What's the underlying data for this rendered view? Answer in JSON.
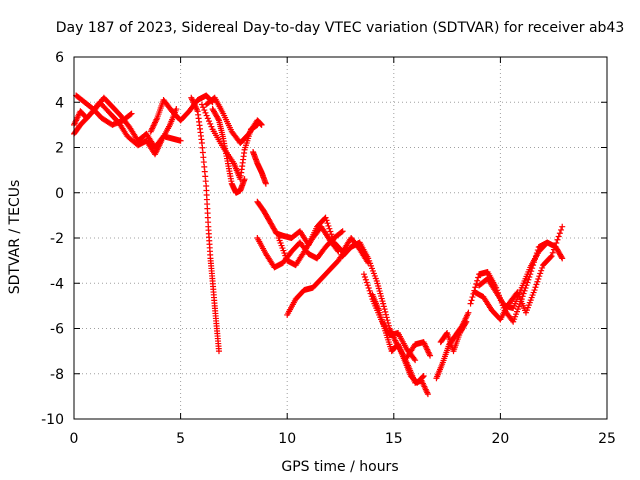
{
  "chart_data": {
    "type": "scatter",
    "title": "Day 187 of 2023, Sidereal Day-to-day VTEC variation (SDTVAR) for receiver ab43",
    "xlabel": "GPS time / hours",
    "ylabel": "SDTVAR / TECUs",
    "xlim": [
      0,
      25
    ],
    "ylim": [
      -10,
      6
    ],
    "xticks": [
      0,
      5,
      10,
      15,
      20,
      25
    ],
    "yticks": [
      -10,
      -8,
      -6,
      -4,
      -2,
      0,
      2,
      4,
      6
    ],
    "xtick_labels": [
      "0",
      "5",
      "10",
      "15",
      "20",
      "25"
    ],
    "ytick_labels": [
      "-10",
      "-8",
      "-6",
      "-4",
      "-2",
      "0",
      "2",
      "4",
      "6"
    ],
    "grid": true,
    "marker": "+",
    "color": "#ff0000",
    "series": [
      {
        "name": "arc-1",
        "x": [
          0.0,
          0.3,
          0.6,
          1.0,
          1.4,
          1.8,
          2.2,
          2.6,
          3.0,
          3.4,
          3.8,
          4.2,
          4.6,
          5.0
        ],
        "y": [
          3.0,
          3.6,
          3.3,
          3.7,
          4.2,
          3.8,
          3.4,
          2.9,
          2.3,
          2.6,
          2.0,
          2.5,
          2.4,
          2.3
        ]
      },
      {
        "name": "arc-2",
        "x": [
          0.0,
          0.3,
          0.7,
          1.2,
          1.7,
          2.1,
          2.5,
          3.0,
          3.4,
          3.8,
          4.1,
          4.5,
          4.8
        ],
        "y": [
          2.6,
          3.0,
          3.4,
          4.0,
          3.5,
          3.1,
          2.5,
          2.1,
          2.3,
          1.7,
          2.3,
          3.0,
          3.7
        ]
      },
      {
        "name": "arc-3",
        "x": [
          0.1,
          0.5,
          0.9,
          1.3,
          1.8,
          2.3,
          2.7
        ],
        "y": [
          4.3,
          4.0,
          3.7,
          3.3,
          3.0,
          3.2,
          3.5
        ]
      },
      {
        "name": "arc-4",
        "x": [
          3.6,
          3.9,
          4.2,
          4.6,
          5.0,
          5.4,
          5.8,
          6.2,
          6.5
        ],
        "y": [
          2.7,
          3.3,
          4.1,
          3.6,
          3.2,
          3.6,
          4.1,
          4.3,
          4.0
        ]
      },
      {
        "name": "arc-5",
        "x": [
          5.5,
          5.8,
          6.0,
          6.2,
          6.3,
          6.4,
          6.5,
          6.6,
          6.7,
          6.8
        ],
        "y": [
          4.2,
          3.6,
          2.2,
          0.3,
          -1.5,
          -2.9,
          -3.9,
          -5.0,
          -6.0,
          -7.0
        ]
      },
      {
        "name": "arc-6",
        "x": [
          6.5,
          6.8,
          7.0,
          7.2,
          7.4,
          7.6,
          7.8,
          8.0
        ],
        "y": [
          3.7,
          3.2,
          2.4,
          1.4,
          0.4,
          0.0,
          0.1,
          0.6
        ]
      },
      {
        "name": "arc-7",
        "x": [
          6.2,
          6.6,
          7.0,
          7.4,
          7.8,
          8.2,
          8.6,
          8.8
        ],
        "y": [
          3.9,
          4.2,
          3.5,
          2.7,
          2.2,
          2.6,
          3.2,
          3.0
        ]
      },
      {
        "name": "arc-8",
        "x": [
          6.0,
          6.5,
          7.0,
          7.5,
          7.8,
          8.0,
          8.3,
          8.6
        ],
        "y": [
          3.9,
          2.8,
          2.0,
          1.3,
          0.6,
          1.9,
          2.8,
          3.0
        ]
      },
      {
        "name": "arc-9",
        "x": [
          8.4,
          8.6,
          8.8,
          9.0
        ],
        "y": [
          1.8,
          1.3,
          0.9,
          0.4
        ]
      },
      {
        "name": "arc-10",
        "x": [
          8.6,
          8.9,
          9.2,
          9.5,
          9.8,
          10.2,
          10.6,
          11.0,
          11.4,
          11.8,
          12.2,
          12.6,
          13.0,
          13.4,
          13.8
        ],
        "y": [
          -0.4,
          -0.8,
          -1.3,
          -1.8,
          -1.9,
          -2.0,
          -1.7,
          -2.3,
          -1.5,
          -1.1,
          -2.2,
          -2.6,
          -2.0,
          -2.5,
          -3.1
        ]
      },
      {
        "name": "arc-11",
        "x": [
          8.6,
          9.0,
          9.4,
          9.8,
          10.2,
          10.6,
          11.0,
          11.4,
          11.8,
          12.2,
          12.6
        ],
        "y": [
          -2.0,
          -2.7,
          -3.3,
          -3.1,
          -2.6,
          -2.2,
          -2.7,
          -2.9,
          -2.4,
          -2.0,
          -1.7
        ]
      },
      {
        "name": "arc-12",
        "x": [
          9.6,
          10.0,
          10.4,
          10.8,
          11.2,
          11.6,
          12.0,
          12.4
        ],
        "y": [
          -2.0,
          -3.0,
          -3.2,
          -2.6,
          -2.0,
          -1.5,
          -2.1,
          -2.6
        ]
      },
      {
        "name": "arc-13",
        "x": [
          10.0,
          10.4,
          10.8,
          11.2,
          11.6,
          12.0,
          12.4,
          12.8
        ],
        "y": [
          -5.4,
          -4.7,
          -4.3,
          -4.2,
          -3.8,
          -3.4,
          -3.0,
          -2.4
        ]
      },
      {
        "name": "arc-14",
        "x": [
          12.6,
          13.0,
          13.4,
          13.8,
          14.2,
          14.5,
          14.8,
          15.1,
          15.4,
          15.7,
          16.0,
          16.3,
          16.6
        ],
        "y": [
          -2.8,
          -2.4,
          -2.2,
          -2.9,
          -3.9,
          -4.9,
          -6.0,
          -6.6,
          -7.1,
          -7.7,
          -8.4,
          -8.3,
          -8.9
        ]
      },
      {
        "name": "arc-15",
        "x": [
          13.6,
          14.0,
          14.4,
          14.8,
          15.2,
          15.6,
          16.0
        ],
        "y": [
          -3.6,
          -4.7,
          -5.6,
          -6.3,
          -6.2,
          -6.9,
          -7.4
        ]
      },
      {
        "name": "arc-16",
        "x": [
          14.0,
          14.3,
          14.6,
          14.9,
          15.2,
          15.5,
          15.8,
          16.1,
          16.4
        ],
        "y": [
          -4.5,
          -5.2,
          -6.1,
          -7.0,
          -6.7,
          -7.4,
          -8.1,
          -8.4,
          -8.1
        ]
      },
      {
        "name": "arc-17",
        "x": [
          15.6,
          16.0,
          16.4,
          16.7
        ],
        "y": [
          -7.3,
          -6.7,
          -6.6,
          -7.2
        ]
      },
      {
        "name": "arc-18",
        "x": [
          17.0,
          17.3,
          17.6,
          17.9,
          18.2,
          18.5
        ],
        "y": [
          -8.2,
          -7.5,
          -6.7,
          -6.3,
          -5.9,
          -5.3
        ]
      },
      {
        "name": "arc-19",
        "x": [
          17.2,
          17.5,
          17.8,
          18.1,
          18.4
        ],
        "y": [
          -6.6,
          -6.2,
          -7.0,
          -6.2,
          -5.7
        ]
      },
      {
        "name": "arc-20",
        "x": [
          18.6,
          19.0,
          19.4,
          19.8,
          20.2,
          20.6,
          21.0,
          21.4,
          21.8,
          22.2,
          22.6,
          22.9
        ],
        "y": [
          -4.9,
          -3.6,
          -3.5,
          -4.2,
          -5.2,
          -5.7,
          -4.7,
          -3.6,
          -2.4,
          -2.2,
          -2.4,
          -2.9
        ]
      },
      {
        "name": "arc-21",
        "x": [
          18.8,
          19.2,
          19.6,
          20.0,
          20.4,
          20.8,
          21.2,
          21.6,
          22.0,
          22.4,
          22.9
        ],
        "y": [
          -4.4,
          -4.6,
          -5.2,
          -5.6,
          -4.9,
          -4.4,
          -5.3,
          -4.3,
          -3.2,
          -2.8,
          -1.5
        ]
      },
      {
        "name": "arc-22",
        "x": [
          19.0,
          19.4,
          19.8,
          20.2,
          20.6,
          21.0,
          21.4,
          21.8,
          22.2
        ],
        "y": [
          -4.1,
          -3.8,
          -4.4,
          -5.0,
          -5.1,
          -4.2,
          -3.3,
          -2.6,
          -2.2
        ]
      }
    ]
  }
}
